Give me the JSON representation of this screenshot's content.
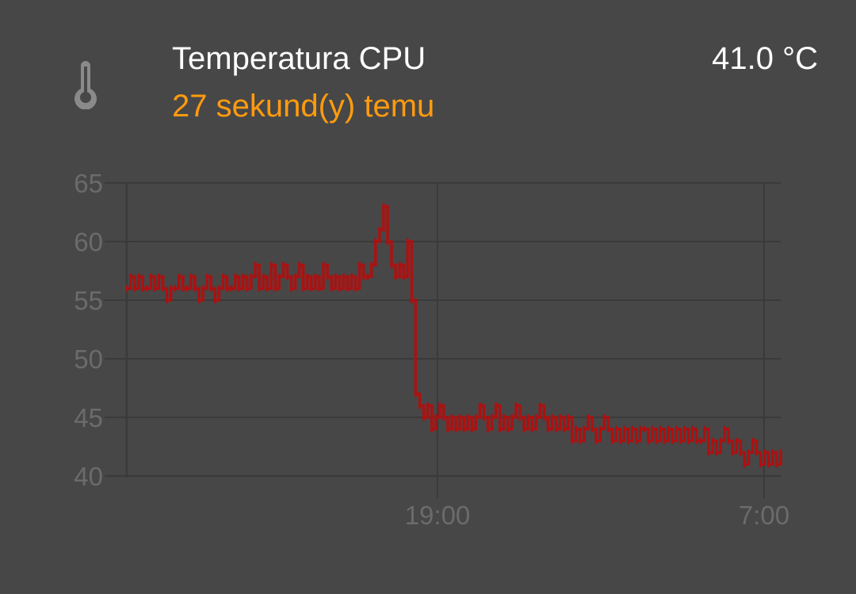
{
  "header": {
    "icon": "thermometer-icon",
    "title": "Temperatura CPU",
    "subtitle": "27 sekund(y) temu",
    "value": "41.0 °C"
  },
  "colors": {
    "background": "#474747",
    "title": "#ffffff",
    "subtitle": "#ff9b0f",
    "series": "#aa1212",
    "grid": "#3a3a3a",
    "axis_text": "#6b6b6b"
  },
  "chart_data": {
    "type": "line",
    "title": "",
    "xlabel": "",
    "ylabel": "",
    "ylim": [
      40,
      65
    ],
    "yticks": [
      "65",
      "60",
      "55",
      "50",
      "45",
      "40"
    ],
    "xticks": [
      "19:00",
      "7:00"
    ],
    "grid": true,
    "series": [
      {
        "values": [
          56,
          57,
          56,
          57,
          56,
          56,
          57,
          56,
          57,
          56,
          55,
          56,
          56,
          57,
          56,
          56,
          57,
          56,
          55,
          56,
          57,
          56,
          55,
          56,
          57,
          56,
          56,
          57,
          56,
          57,
          56,
          57,
          58,
          56,
          57,
          56,
          58,
          56,
          57,
          58,
          57,
          56,
          57,
          58,
          56,
          57,
          56,
          57,
          56,
          58,
          57,
          56,
          57,
          56,
          57,
          56,
          57,
          56,
          58,
          57,
          57,
          58,
          60,
          61,
          63,
          60,
          58,
          57,
          58,
          57,
          60,
          55,
          47,
          46,
          45,
          46,
          44,
          45,
          46,
          45,
          44,
          45,
          44,
          45,
          44,
          45,
          44,
          45,
          46,
          45,
          44,
          45,
          46,
          44,
          45,
          44,
          45,
          46,
          45,
          44,
          45,
          44,
          45,
          46,
          45,
          44,
          45,
          44,
          45,
          44,
          45,
          43,
          44,
          43,
          44,
          45,
          44,
          43,
          44,
          45,
          44,
          43,
          44,
          43,
          44,
          43,
          44,
          43,
          44,
          44,
          43,
          44,
          43,
          44,
          43,
          44,
          43,
          44,
          43,
          44,
          43,
          44,
          43,
          43,
          44,
          42,
          43,
          42,
          43,
          44,
          43,
          42,
          43,
          42,
          41,
          42,
          43,
          42,
          41,
          42,
          41,
          42,
          41,
          42
        ]
      }
    ]
  }
}
